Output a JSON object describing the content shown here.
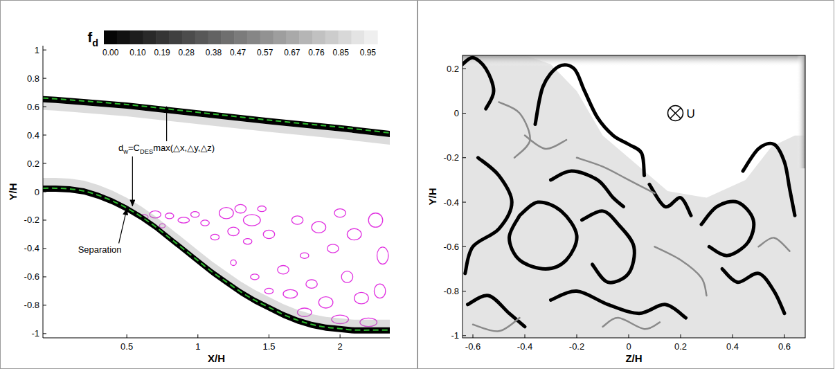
{
  "chart_data": [
    {
      "type": "contour",
      "xlabel": "X/H",
      "ylabel": "Y/H",
      "xlim": [
        -0.09,
        2.35
      ],
      "ylim": [
        -1.03,
        1.03
      ],
      "xticks": [
        0.5,
        1,
        1.5,
        2
      ],
      "yticks": [
        -1,
        -0.8,
        -0.6,
        -0.4,
        -0.2,
        0,
        0.2,
        0.4,
        0.6,
        0.8,
        1
      ],
      "colorbar": {
        "title_parts": [
          {
            "text": "f"
          },
          {
            "text": "d",
            "sub": true
          }
        ],
        "range": [
          -0.025,
          0.985
        ],
        "ticks": [
          {
            "value": 0,
            "label": "0.00"
          },
          {
            "value": 0.1,
            "label": "0.10"
          },
          0.19,
          0.28,
          0.38,
          0.47,
          0.57,
          0.67,
          0.76,
          0.85,
          0.95
        ]
      },
      "wall": {
        "color": "#000000",
        "x": [
          -0.09,
          0,
          0.1,
          0.2,
          0.3,
          0.4,
          0.5,
          0.6,
          0.7,
          0.8,
          0.9,
          1,
          1.1,
          1.2,
          1.3,
          1.4,
          1.5,
          1.6,
          1.7,
          1.8,
          1.9,
          2,
          2.1,
          2.35
        ],
        "y": [
          0,
          0,
          -0.005,
          -0.02,
          -0.05,
          -0.09,
          -0.14,
          -0.2,
          -0.27,
          -0.35,
          -0.43,
          -0.51,
          -0.59,
          -0.66,
          -0.73,
          -0.79,
          -0.84,
          -0.89,
          -0.93,
          -0.96,
          -0.98,
          -0.99,
          -1,
          -1
        ]
      },
      "dw_line": {
        "color": "#2db82d",
        "line_style": "dashed",
        "x": [
          -0.09,
          0,
          0.1,
          0.2,
          0.3,
          0.4,
          0.5,
          0.6,
          0.7,
          0.8,
          0.9,
          1,
          1.1,
          1.2,
          1.3,
          1.4,
          1.5,
          1.6,
          1.7,
          1.8,
          1.9,
          2,
          2.1,
          2.35
        ],
        "y": [
          0.025,
          0.025,
          0.02,
          0.005,
          -0.025,
          -0.065,
          -0.115,
          -0.175,
          -0.245,
          -0.325,
          -0.405,
          -0.485,
          -0.565,
          -0.635,
          -0.705,
          -0.765,
          -0.815,
          -0.865,
          -0.905,
          -0.935,
          -0.955,
          -0.965,
          -0.975,
          -0.975
        ]
      },
      "upper_wall": {
        "color": "#000000",
        "x": [
          -0.09,
          0,
          0.5,
          1,
          1.5,
          2,
          2.35
        ],
        "y": [
          0.675,
          0.67,
          0.63,
          0.575,
          0.52,
          0.47,
          0.43
        ]
      },
      "upper_dw_line": {
        "color": "#2db82d",
        "line_style": "dashed",
        "x": [
          -0.09,
          0,
          0.5,
          1,
          1.5,
          2,
          2.35
        ],
        "y": [
          0.66,
          0.655,
          0.615,
          0.56,
          0.505,
          0.455,
          0.415
        ]
      },
      "vortex_contours": {
        "color": "#e030e0",
        "x": [
          0.62,
          0.7,
          0.8,
          0.9,
          0.98,
          0.75,
          1.05,
          1.2,
          1.3,
          1.38,
          1.25,
          1.45,
          1.5,
          1.12,
          1.35,
          1.7,
          1.85,
          2.0,
          2.1,
          2.25,
          1.95,
          2.3,
          1.75,
          1.6,
          1.5,
          1.65,
          1.8,
          1.9,
          2.05,
          2.15,
          2.28,
          1.75,
          2.0,
          2.2,
          1.4,
          1.25
        ],
        "y": [
          -0.18,
          -0.16,
          -0.17,
          -0.2,
          -0.16,
          -0.24,
          -0.22,
          -0.15,
          -0.12,
          -0.2,
          -0.28,
          -0.12,
          -0.3,
          -0.32,
          -0.35,
          -0.2,
          -0.25,
          -0.15,
          -0.3,
          -0.2,
          -0.4,
          -0.45,
          -0.45,
          -0.55,
          -0.7,
          -0.72,
          -0.65,
          -0.78,
          -0.6,
          -0.75,
          -0.7,
          -0.85,
          -0.9,
          -0.92,
          -0.6,
          -0.5
        ],
        "rx": [
          0.03,
          0.04,
          0.03,
          0.04,
          0.03,
          0.02,
          0.03,
          0.05,
          0.04,
          0.06,
          0.04,
          0.03,
          0.04,
          0.03,
          0.03,
          0.04,
          0.05,
          0.04,
          0.05,
          0.05,
          0.04,
          0.04,
          0.03,
          0.04,
          0.03,
          0.05,
          0.04,
          0.05,
          0.04,
          0.05,
          0.04,
          0.05,
          0.06,
          0.06,
          0.03,
          0.02
        ],
        "ry": [
          0.02,
          0.025,
          0.02,
          0.02,
          0.02,
          0.015,
          0.02,
          0.04,
          0.03,
          0.04,
          0.03,
          0.02,
          0.03,
          0.02,
          0.02,
          0.03,
          0.04,
          0.03,
          0.04,
          0.05,
          0.03,
          0.06,
          0.02,
          0.03,
          0.02,
          0.03,
          0.03,
          0.04,
          0.04,
          0.04,
          0.05,
          0.03,
          0.03,
          0.03,
          0.02,
          0.02
        ]
      },
      "annotations": [
        {
          "parts": [
            {
              "text": "d"
            },
            {
              "text": "w",
              "sub": true
            },
            {
              "text": "=C"
            },
            {
              "text": "DES",
              "sub": true
            },
            {
              "text": "max(△x,△y,△z)"
            }
          ],
          "x": 0.78,
          "y": 0.31,
          "arrows": [
            {
              "x": 0.78,
              "y": 0.6
            },
            {
              "x": 0.54,
              "y": -0.1
            }
          ]
        },
        {
          "parts": [
            {
              "text": "Separation"
            }
          ],
          "x": 0.31,
          "y": -0.41,
          "arrows": [
            {
              "x": 0.5,
              "y": -0.12
            }
          ]
        }
      ]
    },
    {
      "type": "contour",
      "xlabel": "Z/H",
      "ylabel": "Y/H",
      "xlim": [
        -0.64,
        0.68
      ],
      "ylim": [
        -1.01,
        0.26
      ],
      "xticks": [
        -0.6,
        -0.4,
        -0.2,
        0,
        0.2,
        0.4,
        0.6
      ],
      "yticks": [
        -1,
        -0.8,
        -0.6,
        -0.4,
        -0.2,
        0,
        0.2
      ],
      "flow_symbol": {
        "label": "U",
        "x": 0.18,
        "y": 0
      },
      "turbulent_region": {
        "z": [
          -0.64,
          -0.4,
          -0.3,
          -0.2,
          -0.1,
          0.05,
          0.15,
          0.3,
          0.45,
          0.55,
          0.64,
          0.68,
          0.68,
          -0.64
        ],
        "y": [
          0.26,
          0.26,
          0.22,
          0.1,
          -0.1,
          -0.25,
          -0.35,
          -0.38,
          -0.3,
          -0.15,
          -0.1,
          -0.1,
          -1.01,
          -1.01
        ]
      },
      "filaments": [
        {
          "color": "#000000",
          "z": [
            -0.36,
            -0.33,
            -0.27,
            -0.21,
            -0.17,
            -0.12,
            -0.06,
            0.0,
            0.05,
            0.06
          ],
          "y": [
            -0.05,
            0.12,
            0.21,
            0.2,
            0.1,
            -0.02,
            -0.1,
            -0.14,
            -0.18,
            -0.28
          ]
        },
        {
          "color": "#000000",
          "z": [
            -0.64,
            -0.6,
            -0.55,
            -0.52,
            -0.55
          ],
          "y": [
            0.22,
            0.25,
            0.2,
            0.1,
            0.02
          ]
        },
        {
          "color": "#000000",
          "z": [
            -0.58,
            -0.5,
            -0.45,
            -0.5,
            -0.6,
            -0.63
          ],
          "y": [
            -0.2,
            -0.28,
            -0.4,
            -0.52,
            -0.6,
            -0.72
          ]
        },
        {
          "color": "#000000",
          "z": [
            -0.42,
            -0.35,
            -0.26,
            -0.2,
            -0.24,
            -0.32,
            -0.42,
            -0.46,
            -0.42
          ],
          "y": [
            -0.46,
            -0.4,
            -0.44,
            -0.55,
            -0.66,
            -0.7,
            -0.66,
            -0.56,
            -0.46
          ]
        },
        {
          "color": "#000000",
          "z": [
            -0.18,
            -0.1,
            -0.04,
            0.02,
            0.0,
            -0.08,
            -0.14
          ],
          "y": [
            -0.48,
            -0.44,
            -0.5,
            -0.6,
            -0.72,
            -0.76,
            -0.68
          ]
        },
        {
          "color": "#000000",
          "z": [
            -0.3,
            -0.22,
            -0.12,
            -0.06,
            -0.02
          ],
          "y": [
            -0.3,
            -0.26,
            -0.3,
            -0.38,
            -0.42
          ]
        },
        {
          "color": "#000000",
          "z": [
            0.28,
            0.34,
            0.42,
            0.48,
            0.46,
            0.38,
            0.31
          ],
          "y": [
            -0.5,
            -0.42,
            -0.4,
            -0.48,
            -0.58,
            -0.64,
            -0.6
          ]
        },
        {
          "color": "#000000",
          "z": [
            0.44,
            0.5,
            0.56,
            0.6,
            0.62,
            0.64
          ],
          "y": [
            -0.26,
            -0.16,
            -0.14,
            -0.22,
            -0.34,
            -0.46
          ]
        },
        {
          "color": "#000000",
          "z": [
            -0.3,
            -0.2,
            -0.08,
            0.04,
            0.14,
            0.22
          ],
          "y": [
            -0.84,
            -0.8,
            -0.86,
            -0.9,
            -0.86,
            -0.92
          ]
        },
        {
          "color": "#000000",
          "z": [
            0.08,
            0.14,
            0.2,
            0.24
          ],
          "y": [
            -0.32,
            -0.42,
            -0.38,
            -0.46
          ]
        },
        {
          "color": "#000000",
          "z": [
            -0.62,
            -0.54,
            -0.46,
            -0.4
          ],
          "y": [
            -0.86,
            -0.82,
            -0.9,
            -0.96
          ]
        },
        {
          "color": "#000000",
          "z": [
            0.36,
            0.42,
            0.5,
            0.56,
            0.6
          ],
          "y": [
            -0.7,
            -0.76,
            -0.72,
            -0.8,
            -0.9
          ]
        },
        {
          "color": "#8a8a8a",
          "z": [
            -0.5,
            -0.42,
            -0.38,
            -0.44
          ],
          "y": [
            0.05,
            0.0,
            -0.12,
            -0.2
          ]
        },
        {
          "color": "#8a8a8a",
          "z": [
            -0.2,
            -0.1,
            0.0,
            0.1
          ],
          "y": [
            -0.2,
            -0.24,
            -0.3,
            -0.36
          ]
        },
        {
          "color": "#8a8a8a",
          "z": [
            0.1,
            0.2,
            0.28,
            0.3
          ],
          "y": [
            -0.6,
            -0.66,
            -0.74,
            -0.82
          ]
        },
        {
          "color": "#8a8a8a",
          "z": [
            -0.6,
            -0.5,
            -0.42
          ],
          "y": [
            -0.95,
            -0.98,
            -0.92
          ]
        },
        {
          "color": "#8a8a8a",
          "z": [
            0.5,
            0.56,
            0.62
          ],
          "y": [
            -0.6,
            -0.56,
            -0.62
          ]
        },
        {
          "color": "#8a8a8a",
          "z": [
            -0.1,
            -0.04,
            0.06,
            0.12
          ],
          "y": [
            -0.96,
            -0.92,
            -0.97,
            -0.94
          ]
        },
        {
          "color": "#8a8a8a",
          "z": [
            -0.4,
            -0.32,
            -0.24
          ],
          "y": [
            -0.1,
            -0.16,
            -0.12
          ]
        }
      ]
    }
  ]
}
